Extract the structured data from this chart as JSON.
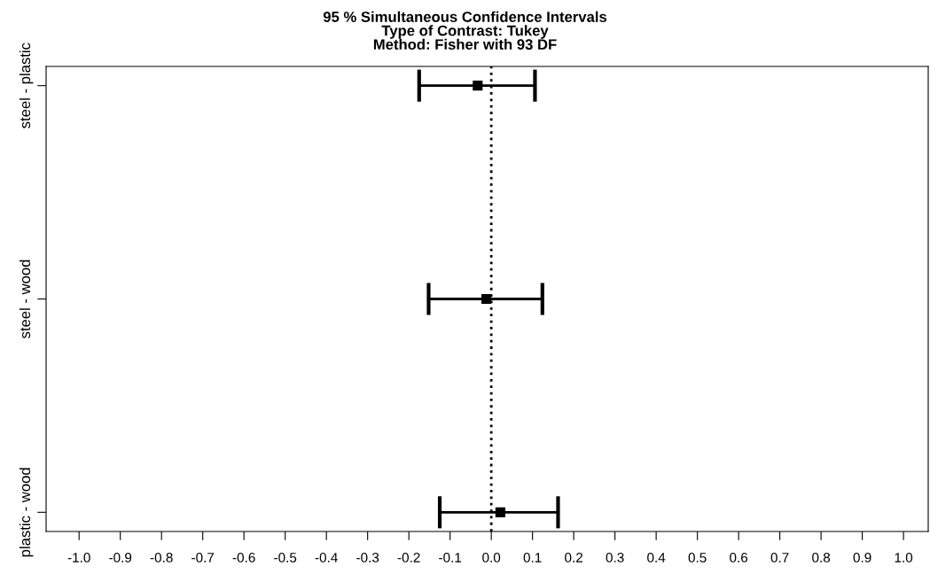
{
  "chart_data": {
    "type": "scatter",
    "orientation": "horizontal",
    "title": "95 % Simultaneous Confidence Intervals",
    "subtitle": "Type of Contrast: Tukey\nMethod: Fisher with 93 DF",
    "categories": [
      "steel - plastic",
      "steel - wood",
      "plastic - wood"
    ],
    "values": [
      -0.033,
      -0.012,
      0.022
    ],
    "errors": [
      [
        -0.175,
        0.106
      ],
      [
        -0.152,
        0.124
      ],
      [
        -0.125,
        0.162
      ]
    ],
    "color": "#000000",
    "marker": "square",
    "xlim": [
      -1.08,
      1.06
    ],
    "xticks": [
      {
        "value": -1.0,
        "label": "-1.0"
      },
      -0.9,
      -0.8,
      -0.7,
      -0.6,
      -0.5,
      -0.4,
      -0.3,
      -0.2,
      -0.1,
      {
        "value": 0.0,
        "label": "0.0"
      },
      0.1,
      0.2,
      0.3,
      0.4,
      0.5,
      0.6,
      0.7,
      0.8,
      0.9,
      {
        "value": 1.0,
        "label": "1.0"
      }
    ],
    "ref_lines": [
      {
        "axis": "x",
        "value": 0,
        "label": null,
        "color": "#000000",
        "line_style": "dotted"
      }
    ],
    "grid": false
  }
}
